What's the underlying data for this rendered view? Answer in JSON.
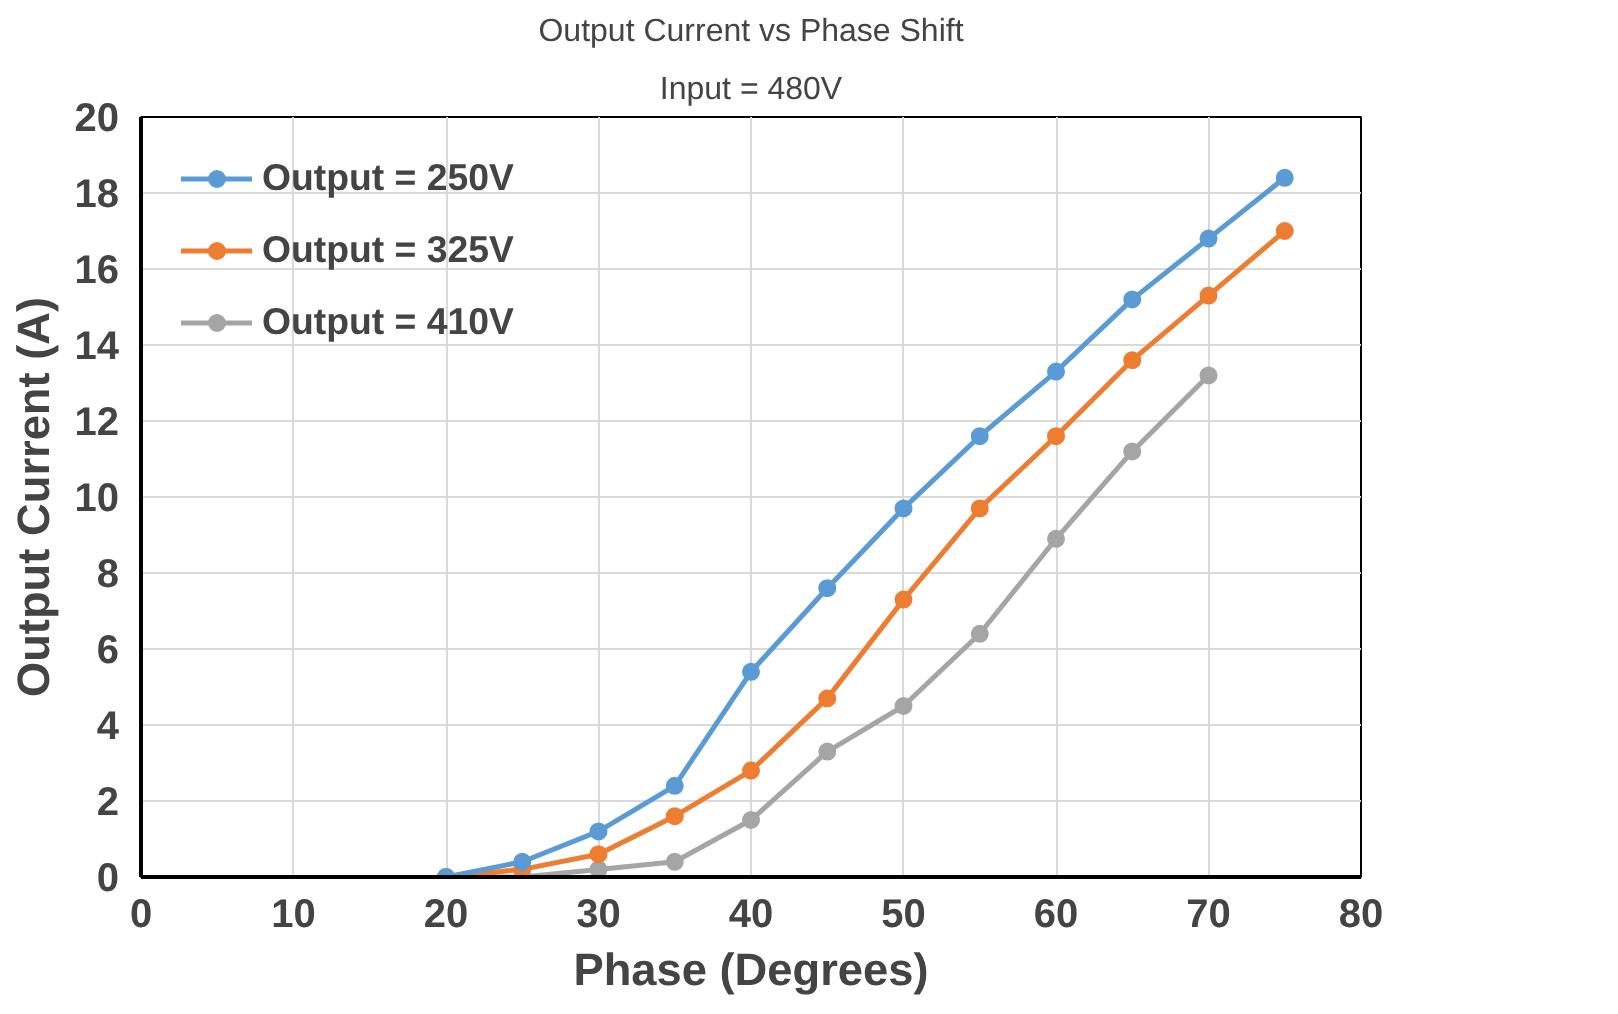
{
  "chart_data": {
    "type": "line",
    "title": "Output Current vs Phase Shift",
    "subtitle": "Input = 480V",
    "xlabel": "Phase (Degrees)",
    "ylabel": "Output Current (A)",
    "x": [
      20,
      25,
      30,
      35,
      40,
      45,
      50,
      55,
      60,
      65,
      70,
      75
    ],
    "series": [
      {
        "name": "Output = 250V",
        "color": "#5b9bd5",
        "values": [
          0,
          0.4,
          1.2,
          2.4,
          5.4,
          7.6,
          9.7,
          11.6,
          13.3,
          15.2,
          16.8,
          18.4
        ]
      },
      {
        "name": "Output = 325V",
        "color": "#ed7d31",
        "values": [
          0,
          0.2,
          0.6,
          1.6,
          2.8,
          4.7,
          7.3,
          9.7,
          11.6,
          13.6,
          15.3,
          17.0
        ]
      },
      {
        "name": "Output = 410V",
        "color": "#a5a5a5",
        "x": [
          20,
          25,
          30,
          35,
          40,
          45,
          50,
          55,
          60,
          65,
          70
        ],
        "values": [
          0,
          0,
          0.2,
          0.4,
          1.5,
          3.3,
          4.5,
          6.4,
          8.9,
          11.2,
          13.2
        ]
      }
    ],
    "xlim": [
      0,
      80
    ],
    "xticks": [
      0,
      10,
      20,
      30,
      40,
      50,
      60,
      70,
      80
    ],
    "ylim": [
      0,
      20
    ],
    "yticks": [
      0,
      2,
      4,
      6,
      8,
      10,
      12,
      14,
      16,
      18,
      20
    ],
    "grid": true,
    "legend": "top left",
    "marker": "circle",
    "line_style": "solid"
  }
}
